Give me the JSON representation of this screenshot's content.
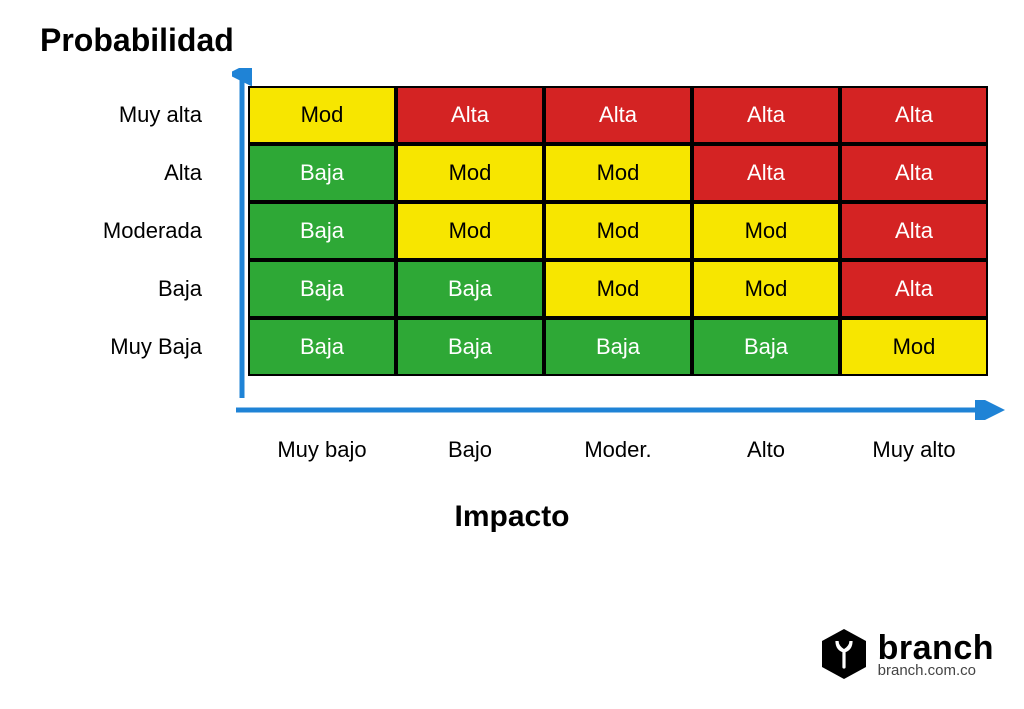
{
  "type": "heatmap",
  "y_axis": {
    "title": "Probabilidad",
    "labels": [
      "Muy alta",
      "Alta",
      "Moderada",
      "Baja",
      "Muy Baja"
    ],
    "label_fontsize": 22,
    "title_fontsize": 32,
    "title_fontweight": "900",
    "arrow_color": "#1f83d6",
    "arrow_stroke_width": 5
  },
  "x_axis": {
    "title": "Impacto",
    "labels": [
      "Muy bajo",
      "Bajo",
      "Moder.",
      "Alto",
      "Muy alto"
    ],
    "label_fontsize": 22,
    "title_fontsize": 30,
    "title_fontweight": "900",
    "arrow_color": "#1f83d6",
    "arrow_stroke_width": 5
  },
  "palette": {
    "green": {
      "bg": "#2ea836",
      "fg": "#ffffff"
    },
    "yellow": {
      "bg": "#f7e600",
      "fg": "#000000"
    },
    "red": {
      "bg": "#d42323",
      "fg": "#ffffff"
    }
  },
  "cell_border_color": "#000000",
  "cell_border_width": 2,
  "background_color": "#ffffff",
  "cells": [
    [
      {
        "text": "Mod",
        "level": "yellow"
      },
      {
        "text": "Alta",
        "level": "red"
      },
      {
        "text": "Alta",
        "level": "red"
      },
      {
        "text": "Alta",
        "level": "red"
      },
      {
        "text": "Alta",
        "level": "red"
      }
    ],
    [
      {
        "text": "Baja",
        "level": "green"
      },
      {
        "text": "Mod",
        "level": "yellow"
      },
      {
        "text": "Mod",
        "level": "yellow"
      },
      {
        "text": "Alta",
        "level": "red"
      },
      {
        "text": "Alta",
        "level": "red"
      }
    ],
    [
      {
        "text": "Baja",
        "level": "green"
      },
      {
        "text": "Mod",
        "level": "yellow"
      },
      {
        "text": "Mod",
        "level": "yellow"
      },
      {
        "text": "Mod",
        "level": "yellow"
      },
      {
        "text": "Alta",
        "level": "red"
      }
    ],
    [
      {
        "text": "Baja",
        "level": "green"
      },
      {
        "text": "Baja",
        "level": "green"
      },
      {
        "text": "Mod",
        "level": "yellow"
      },
      {
        "text": "Mod",
        "level": "yellow"
      },
      {
        "text": "Alta",
        "level": "red"
      }
    ],
    [
      {
        "text": "Baja",
        "level": "green"
      },
      {
        "text": "Baja",
        "level": "green"
      },
      {
        "text": "Baja",
        "level": "green"
      },
      {
        "text": "Baja",
        "level": "green"
      },
      {
        "text": "Mod",
        "level": "yellow"
      }
    ]
  ],
  "brand": {
    "name": "branch",
    "url": "branch.com.co",
    "name_fontsize": 34,
    "url_fontsize": 15,
    "icon_color": "#000000"
  }
}
